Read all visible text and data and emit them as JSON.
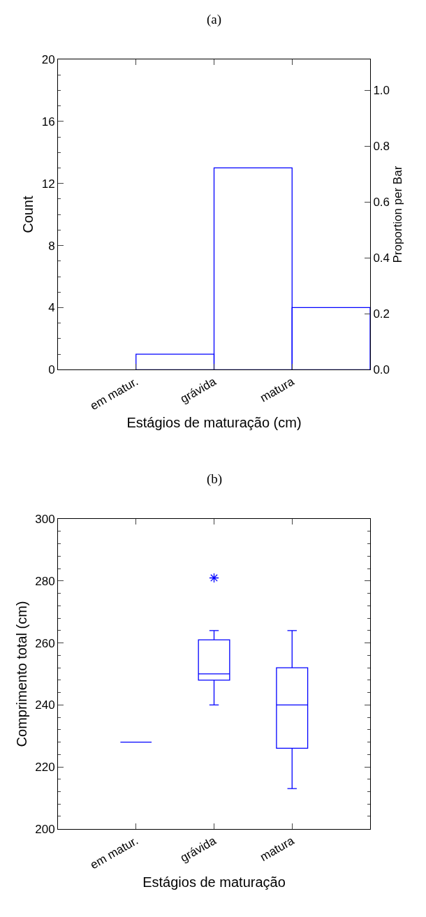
{
  "chart_data": [
    {
      "type": "bar",
      "title": "(a)",
      "xlabel": "Estágios de maturação (cm)",
      "ylabel": "Count",
      "y2label": "Proportion per Bar",
      "categories": [
        "em matur.",
        "grávida",
        "matura"
      ],
      "series": [
        {
          "color": "#0000ff",
          "values": [
            1,
            13,
            4
          ]
        }
      ],
      "ylim": [
        0,
        20
      ],
      "yticks": [
        0,
        4,
        8,
        12,
        16,
        20
      ],
      "y2lim": [
        0,
        1.111
      ],
      "y2ticks": [
        {
          "value": 0,
          "label": "0.0"
        },
        {
          "value": 0.2,
          "label": "0.2"
        },
        {
          "value": 0.4,
          "label": "0.4"
        },
        {
          "value": 0.6,
          "label": "0.6"
        },
        {
          "value": 0.8,
          "label": "0.8"
        },
        {
          "value": 1.0,
          "label": "1.0"
        }
      ]
    },
    {
      "type": "box",
      "title": "(b)",
      "xlabel": "Estágios de maturação",
      "ylabel": "Comprimento total (cm)",
      "categories": [
        "em matur.",
        "grávida",
        "matura"
      ],
      "series": [
        {
          "color": "#0000ff",
          "boxes": [
            {
              "low": 228,
              "q1": 228,
              "median": 228,
              "q3": 228,
              "high": 228
            },
            {
              "low": 240,
              "q1": 248,
              "median": 250,
              "q3": 261,
              "high": 264,
              "outliers": [
                281
              ]
            },
            {
              "low": 213,
              "q1": 226,
              "median": 240,
              "q3": 252,
              "high": 264
            }
          ]
        }
      ],
      "ylim": [
        200,
        300
      ],
      "yticks": [
        200,
        220,
        240,
        260,
        280,
        300
      ]
    }
  ]
}
